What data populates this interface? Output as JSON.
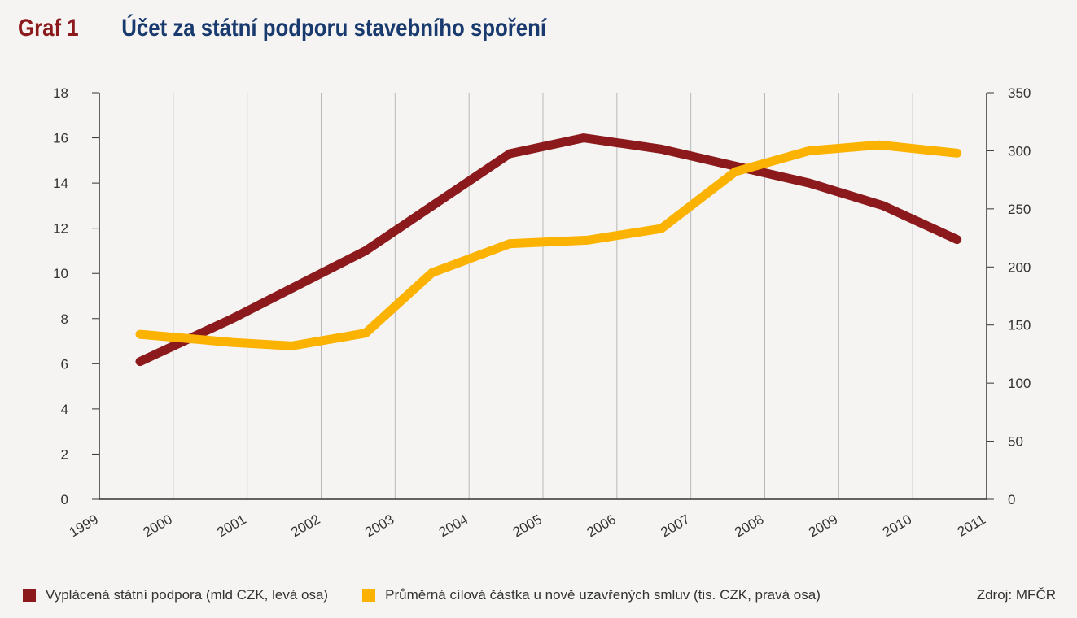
{
  "header": {
    "label": "Graf 1",
    "title": "Účet za státní podporu stavebního spoření"
  },
  "colors": {
    "series1": "#8c1a1c",
    "series2": "#fbb200",
    "title_label": "#8c1a1c",
    "title_text": "#183a6e"
  },
  "source": "Zdroj: MFČR",
  "chart_data": {
    "type": "line",
    "x": [
      "1999",
      "2000",
      "2001",
      "2002",
      "2003",
      "2004",
      "2005",
      "2006",
      "2007",
      "2008",
      "2009",
      "2010",
      "2011"
    ],
    "y_left": {
      "ticks": [
        "0",
        "2",
        "4",
        "6",
        "8",
        "10",
        "12",
        "14",
        "16",
        "18"
      ],
      "ylim": [
        0,
        18
      ]
    },
    "y_right": {
      "ticks": [
        "0",
        "50",
        "100",
        "150",
        "200",
        "250",
        "300",
        "350"
      ],
      "ylim": [
        0,
        350
      ]
    },
    "grid": "vertical",
    "legend": "bottom",
    "series": [
      {
        "name": "Vyplácená státní podpora (mld CZK, levá osa)",
        "axis": "left",
        "color": "#8c1a1c",
        "points": [
          {
            "x": 1999.55,
            "y": 6.1
          },
          {
            "x": 2000.8,
            "y": 8.0
          },
          {
            "x": 2002.6,
            "y": 11.0
          },
          {
            "x": 2004.55,
            "y": 15.3
          },
          {
            "x": 2005.55,
            "y": 16.0
          },
          {
            "x": 2006.6,
            "y": 15.5
          },
          {
            "x": 2008.6,
            "y": 14.0
          },
          {
            "x": 2009.6,
            "y": 13.0
          },
          {
            "x": 2010.6,
            "y": 11.5
          }
        ]
      },
      {
        "name": "Průměrná cílová částka u nově uzavřených smluv (tis. CZK, pravá osa)",
        "axis": "right",
        "color": "#fbb200",
        "points": [
          {
            "x": 1999.55,
            "y": 142
          },
          {
            "x": 2000.8,
            "y": 135
          },
          {
            "x": 2001.6,
            "y": 132
          },
          {
            "x": 2002.6,
            "y": 143
          },
          {
            "x": 2003.5,
            "y": 195
          },
          {
            "x": 2004.55,
            "y": 220
          },
          {
            "x": 2005.6,
            "y": 223
          },
          {
            "x": 2006.6,
            "y": 233
          },
          {
            "x": 2007.6,
            "y": 282
          },
          {
            "x": 2008.6,
            "y": 300
          },
          {
            "x": 2009.55,
            "y": 305
          },
          {
            "x": 2010.6,
            "y": 298
          }
        ]
      }
    ]
  }
}
